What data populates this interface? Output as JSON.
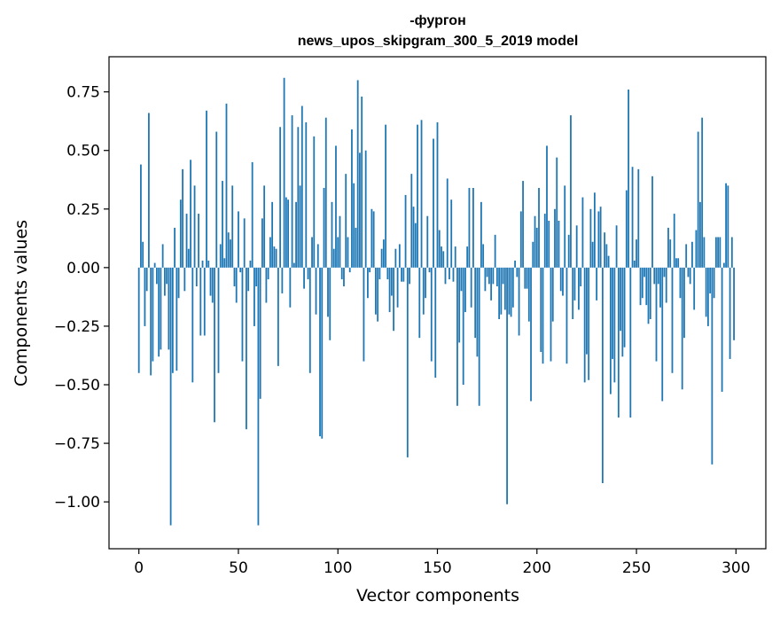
{
  "chart_data": {
    "type": "bar",
    "title_lines": [
      "-фургон",
      "news_upos_skipgram_300_5_2019 model"
    ],
    "xlabel": "Vector components",
    "ylabel": "Components values",
    "xlim": [
      -15,
      315
    ],
    "ylim": [
      -1.2,
      0.9
    ],
    "xticks": [
      {
        "value": 0,
        "label": "0"
      },
      {
        "value": 50,
        "label": "50"
      },
      {
        "value": 100,
        "label": "100"
      },
      {
        "value": 150,
        "label": "150"
      },
      {
        "value": 200,
        "label": "200"
      },
      {
        "value": 250,
        "label": "250"
      },
      {
        "value": 300,
        "label": "300"
      }
    ],
    "yticks": [
      {
        "value": 0.75,
        "label": "0.75"
      },
      {
        "value": 0.5,
        "label": "0.50"
      },
      {
        "value": 0.25,
        "label": "0.25"
      },
      {
        "value": 0.0,
        "label": "0.00"
      },
      {
        "value": -0.25,
        "label": "−0.25"
      },
      {
        "value": -0.5,
        "label": "−0.50"
      },
      {
        "value": -0.75,
        "label": "−0.75"
      },
      {
        "value": -1.0,
        "label": "−1.00"
      }
    ],
    "bar_color": "#1f77b4",
    "grid": false,
    "legend": "none",
    "values": [
      -0.45,
      0.44,
      0.11,
      -0.25,
      -0.1,
      0.66,
      -0.46,
      -0.4,
      0.02,
      -0.07,
      -0.38,
      -0.35,
      0.1,
      -0.12,
      -0.07,
      -0.35,
      -1.1,
      -0.45,
      0.17,
      -0.44,
      -0.13,
      0.29,
      0.42,
      -0.1,
      0.23,
      0.08,
      0.46,
      -0.49,
      0.35,
      -0.08,
      0.23,
      -0.29,
      0.03,
      -0.29,
      0.67,
      0.03,
      -0.12,
      -0.15,
      -0.66,
      0.58,
      -0.45,
      0.1,
      0.37,
      0.04,
      0.7,
      0.15,
      0.12,
      0.35,
      -0.08,
      -0.15,
      0.24,
      -0.02,
      -0.4,
      0.21,
      -0.69,
      -0.1,
      0.03,
      0.45,
      -0.25,
      -0.08,
      -1.1,
      -0.56,
      0.21,
      0.35,
      -0.15,
      -0.05,
      0.13,
      0.28,
      0.09,
      0.08,
      -0.42,
      0.6,
      -0.11,
      0.81,
      0.3,
      0.29,
      -0.17,
      0.65,
      0.02,
      0.28,
      0.6,
      0.35,
      0.69,
      -0.09,
      0.62,
      -0.05,
      -0.45,
      0.13,
      0.56,
      -0.2,
      0.1,
      -0.72,
      -0.73,
      0.34,
      0.64,
      -0.21,
      -0.31,
      0.28,
      0.08,
      0.52,
      0.13,
      0.22,
      -0.05,
      -0.08,
      0.4,
      0.13,
      -0.02,
      0.59,
      0.36,
      0.17,
      0.8,
      0.49,
      0.73,
      -0.4,
      0.5,
      -0.13,
      -0.02,
      0.25,
      0.24,
      -0.2,
      -0.23,
      -0.05,
      0.08,
      0.12,
      0.61,
      -0.05,
      -0.19,
      -0.12,
      -0.27,
      0.08,
      -0.17,
      0.1,
      -0.06,
      -0.06,
      0.31,
      -0.81,
      -0.07,
      0.4,
      0.26,
      0.19,
      0.61,
      -0.3,
      0.63,
      -0.2,
      -0.13,
      0.22,
      -0.02,
      -0.4,
      0.55,
      -0.47,
      0.62,
      0.16,
      0.09,
      0.07,
      -0.07,
      0.38,
      -0.05,
      0.29,
      -0.06,
      0.09,
      -0.59,
      -0.32,
      -0.1,
      -0.5,
      -0.19,
      0.09,
      0.34,
      -0.17,
      0.34,
      -0.3,
      -0.38,
      -0.59,
      0.28,
      0.1,
      -0.1,
      -0.04,
      -0.07,
      -0.14,
      -0.07,
      0.14,
      -0.08,
      -0.22,
      -0.2,
      -0.07,
      -0.18,
      -1.01,
      -0.2,
      -0.21,
      -0.17,
      0.03,
      -0.04,
      -0.29,
      0.24,
      0.37,
      -0.09,
      -0.09,
      -0.23,
      -0.57,
      0.11,
      0.22,
      0.17,
      0.34,
      -0.36,
      -0.41,
      0.23,
      0.52,
      0.2,
      -0.4,
      -0.23,
      0.25,
      0.47,
      0.2,
      -0.1,
      -0.12,
      0.35,
      -0.41,
      0.14,
      0.65,
      -0.22,
      -0.14,
      0.18,
      -0.18,
      -0.08,
      0.3,
      -0.49,
      -0.37,
      -0.48,
      0.25,
      0.11,
      0.32,
      -0.14,
      0.24,
      0.26,
      -0.92,
      0.15,
      0.1,
      0.05,
      -0.54,
      -0.39,
      -0.49,
      0.18,
      -0.64,
      -0.27,
      -0.38,
      -0.34,
      0.33,
      0.76,
      -0.64,
      0.43,
      0.03,
      0.12,
      0.42,
      -0.16,
      -0.13,
      -0.04,
      -0.16,
      -0.24,
      -0.22,
      0.39,
      -0.07,
      -0.4,
      -0.07,
      -0.17,
      -0.57,
      -0.04,
      -0.15,
      0.17,
      0.12,
      -0.45,
      0.23,
      0.04,
      0.04,
      -0.13,
      -0.52,
      -0.3,
      0.1,
      -0.04,
      -0.07,
      0.11,
      -0.18,
      0.16,
      0.58,
      0.28,
      0.64,
      0.13,
      -0.21,
      -0.25,
      -0.11,
      -0.84,
      -0.13,
      0.13,
      0.13,
      0.13,
      -0.53,
      0.02,
      0.36,
      0.35,
      -0.39,
      0.13,
      -0.31
    ]
  }
}
